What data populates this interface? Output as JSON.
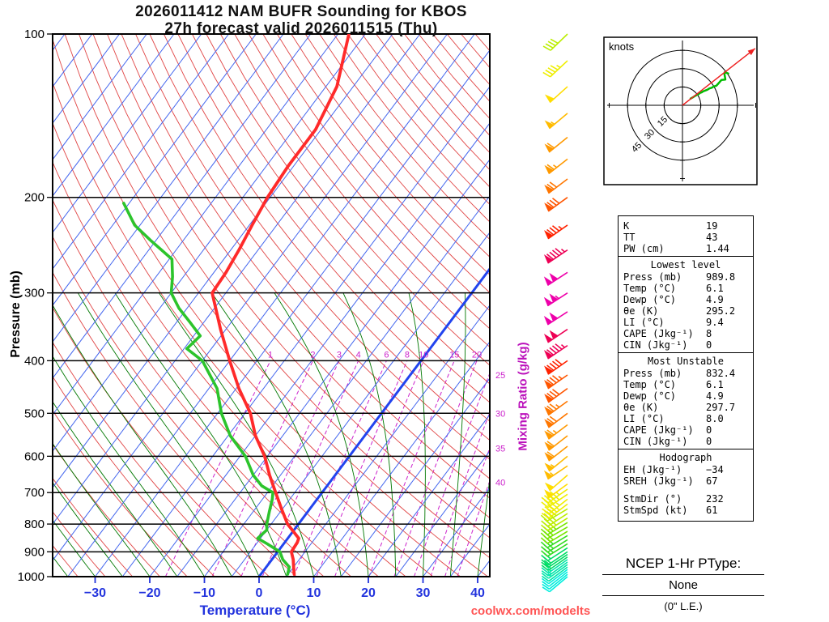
{
  "title": {
    "line1": "2026011412 NAM BUFR Sounding for KBOS",
    "line2": "27h forecast valid 2026011515 (Thu)"
  },
  "watermark": "coolwx.com/modelts",
  "chart_data": {
    "type": "skewt-log-p-sounding",
    "axes": {
      "pressure_label": "Pressure (mb)",
      "temp_label": "Temperature (°C)",
      "mixing_label": "Mixing Ratio (g/kg)",
      "pressure_ticks_mb": [
        100,
        200,
        300,
        400,
        500,
        600,
        700,
        800,
        900,
        1000
      ],
      "temp_ticks_c": [
        -30,
        -20,
        -10,
        0,
        10,
        20,
        30,
        40
      ],
      "pressure_range_mb": [
        100,
        1000
      ],
      "temp_range_at_surface_c": [
        -38,
        42
      ]
    },
    "mixing_ratio_lines_gkg": [
      1,
      2,
      3,
      4,
      6,
      8,
      10,
      15,
      20,
      25,
      30,
      35,
      40
    ],
    "temperature_profile": [
      [
        989.8,
        6.1
      ],
      [
        960,
        5.0
      ],
      [
        930,
        3.9
      ],
      [
        900,
        2.5
      ],
      [
        865,
        2.3
      ],
      [
        850,
        2.0
      ],
      [
        800,
        -2.0
      ],
      [
        750,
        -5.2
      ],
      [
        700,
        -8.5
      ],
      [
        650,
        -12.0
      ],
      [
        600,
        -15.5
      ],
      [
        550,
        -20.0
      ],
      [
        500,
        -24.0
      ],
      [
        450,
        -29.5
      ],
      [
        400,
        -35.0
      ],
      [
        350,
        -41.0
      ],
      [
        300,
        -47.5
      ],
      [
        275,
        -47.8
      ],
      [
        250,
        -48.5
      ],
      [
        225,
        -49.5
      ],
      [
        200,
        -50.5
      ],
      [
        175,
        -51.0
      ],
      [
        150,
        -51.0
      ],
      [
        125,
        -53.0
      ],
      [
        100,
        -58.0
      ]
    ],
    "dewpoint_profile": [
      [
        989.8,
        4.9
      ],
      [
        960,
        4.2
      ],
      [
        930,
        2.0
      ],
      [
        900,
        0.4
      ],
      [
        870,
        -3.0
      ],
      [
        850,
        -5.5
      ],
      [
        820,
        -5.0
      ],
      [
        800,
        -5.8
      ],
      [
        760,
        -7.0
      ],
      [
        720,
        -8.2
      ],
      [
        700,
        -9.0
      ],
      [
        680,
        -12.0
      ],
      [
        650,
        -15.0
      ],
      [
        600,
        -19.0
      ],
      [
        550,
        -24.6
      ],
      [
        500,
        -29.3
      ],
      [
        450,
        -33.5
      ],
      [
        400,
        -40.0
      ],
      [
        380,
        -44.5
      ],
      [
        360,
        -43.8
      ],
      [
        340,
        -47.5
      ],
      [
        320,
        -51.5
      ],
      [
        300,
        -55.0
      ],
      [
        280,
        -57.0
      ],
      [
        260,
        -59.5
      ],
      [
        240,
        -66.0
      ],
      [
        225,
        -71.0
      ],
      [
        205,
        -76.0
      ]
    ],
    "winds_kt": [
      [
        1000,
        230,
        8
      ],
      [
        990,
        231,
        9
      ],
      [
        980,
        232,
        10
      ],
      [
        970,
        233,
        11
      ],
      [
        960,
        233,
        12
      ],
      [
        950,
        234,
        14
      ],
      [
        940,
        234,
        15
      ],
      [
        930,
        235,
        16
      ],
      [
        920,
        235,
        18
      ],
      [
        910,
        236,
        19
      ],
      [
        900,
        236,
        20
      ],
      [
        885,
        237,
        22
      ],
      [
        870,
        238,
        24
      ],
      [
        855,
        238,
        26
      ],
      [
        840,
        239,
        28
      ],
      [
        825,
        239,
        30
      ],
      [
        810,
        240,
        32
      ],
      [
        795,
        239,
        34
      ],
      [
        780,
        238,
        36
      ],
      [
        765,
        237,
        38
      ],
      [
        750,
        239,
        41
      ],
      [
        735,
        233,
        43
      ],
      [
        720,
        232,
        44
      ],
      [
        705,
        236,
        46
      ],
      [
        690,
        235,
        47
      ],
      [
        675,
        234,
        48
      ],
      [
        650,
        229,
        50
      ],
      [
        625,
        236,
        54
      ],
      [
        600,
        231,
        57
      ],
      [
        575,
        232,
        60
      ],
      [
        550,
        232,
        62
      ],
      [
        525,
        233,
        66
      ],
      [
        500,
        233,
        70
      ],
      [
        475,
        234,
        74
      ],
      [
        450,
        234,
        78
      ],
      [
        425,
        235,
        83
      ],
      [
        400,
        235,
        88
      ],
      [
        375,
        236,
        93
      ],
      [
        350,
        236,
        98
      ],
      [
        325,
        237,
        102
      ],
      [
        300,
        237,
        105
      ],
      [
        275,
        237,
        101
      ],
      [
        250,
        236,
        95
      ],
      [
        225,
        235,
        87
      ],
      [
        200,
        234,
        78
      ],
      [
        185,
        233,
        72
      ],
      [
        170,
        232,
        66
      ],
      [
        155,
        231,
        60
      ],
      [
        140,
        230,
        54
      ],
      [
        125,
        228,
        48
      ],
      [
        112,
        227,
        44
      ],
      [
        100,
        226,
        40
      ]
    ],
    "hodograph": {
      "unit_label": "knots",
      "ring_labels_kt": [
        15,
        30,
        45
      ],
      "storm_dir_deg": 232,
      "storm_speed_kt": 61
    },
    "colors": {
      "temperature_line": "#ff2a2a",
      "dewpoint_line": "#2cc42c",
      "isotherm": "#4466ee",
      "freezing_isotherm": "#2244ee",
      "dry_adiabat": "#e04444",
      "moist_adiabat": "#007700",
      "mixing_ratio": "#cc22cc",
      "temp_axis": "#2233dd",
      "watermark": "#ff5555",
      "hodo_trace": "#00bb00",
      "storm_motion": "#ee2222"
    },
    "wind_speed_palette": [
      {
        "max_kt": 12,
        "color": "#00eedd"
      },
      {
        "max_kt": 18,
        "color": "#00e6aa"
      },
      {
        "max_kt": 24,
        "color": "#00dd66"
      },
      {
        "max_kt": 30,
        "color": "#33dd22"
      },
      {
        "max_kt": 36,
        "color": "#77e600"
      },
      {
        "max_kt": 42,
        "color": "#bbee00"
      },
      {
        "max_kt": 48,
        "color": "#eeee00"
      },
      {
        "max_kt": 54,
        "color": "#ffdd00"
      },
      {
        "max_kt": 60,
        "color": "#ffbb00"
      },
      {
        "max_kt": 68,
        "color": "#ff9900"
      },
      {
        "max_kt": 76,
        "color": "#ff7700"
      },
      {
        "max_kt": 84,
        "color": "#ff5500"
      },
      {
        "max_kt": 92,
        "color": "#ff2200"
      },
      {
        "max_kt": 100,
        "color": "#ee0055"
      },
      {
        "max_kt": 999,
        "color": "#ee00aa"
      }
    ]
  },
  "stats": {
    "indices": [
      [
        "K",
        "19"
      ],
      [
        "TT",
        "43"
      ],
      [
        "PW (cm)",
        "1.44"
      ]
    ],
    "sections": [
      {
        "header": "Lowest level",
        "rows": [
          [
            "Press (mb)",
            "989.8"
          ],
          [
            "Temp (°C)",
            "6.1"
          ],
          [
            "Dewp (°C)",
            "4.9"
          ],
          [
            "θe (K)",
            "295.2"
          ],
          [
            "LI (°C)",
            "9.4"
          ],
          [
            "CAPE (Jkg⁻¹)",
            "8"
          ],
          [
            "CIN (Jkg⁻¹)",
            "0"
          ]
        ]
      },
      {
        "header": "Most Unstable",
        "rows": [
          [
            "Press (mb)",
            "832.4"
          ],
          [
            "Temp (°C)",
            "6.1"
          ],
          [
            "Dewp (°C)",
            "4.9"
          ],
          [
            "θe (K)",
            "297.7"
          ],
          [
            "LI (°C)",
            "8.0"
          ],
          [
            "CAPE (Jkg⁻¹)",
            "0"
          ],
          [
            "CIN (Jkg⁻¹)",
            "0"
          ]
        ]
      },
      {
        "header": "Hodograph",
        "rows": [
          [
            "EH (Jkg⁻¹)",
            "−34"
          ],
          [
            "SREH (Jkg⁻¹)",
            "67"
          ],
          [
            "",
            ""
          ],
          [
            "StmDir (°)",
            "232"
          ],
          [
            "StmSpd (kt)",
            "61"
          ]
        ]
      }
    ]
  },
  "ptype": {
    "title": "NCEP 1-Hr PType:",
    "value": "None",
    "note": "(0\" L.E.)"
  }
}
